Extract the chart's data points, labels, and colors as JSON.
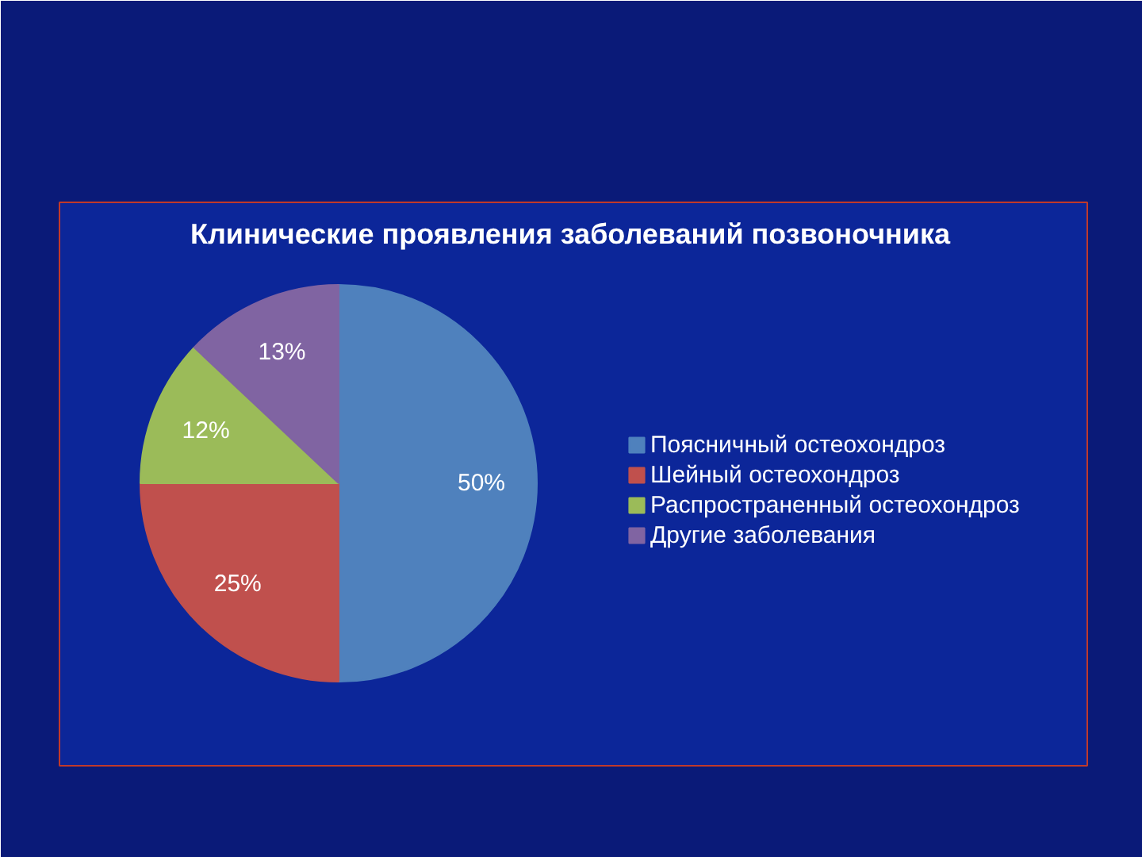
{
  "chart_data": {
    "type": "pie",
    "title": "Клинические проявления заболеваний позвоночника",
    "categories": [
      "Поясничный остеохондроз",
      "Шейный остеохондроз",
      "Распространенный остеохондроз",
      "Другие заболевания"
    ],
    "values": [
      50,
      25,
      12,
      13
    ],
    "colors": [
      "#4f81bd",
      "#c0504d",
      "#9bbb59",
      "#8064a2"
    ],
    "value_labels": [
      "50%",
      "25%",
      "12%",
      "13%"
    ],
    "legend": "right"
  }
}
